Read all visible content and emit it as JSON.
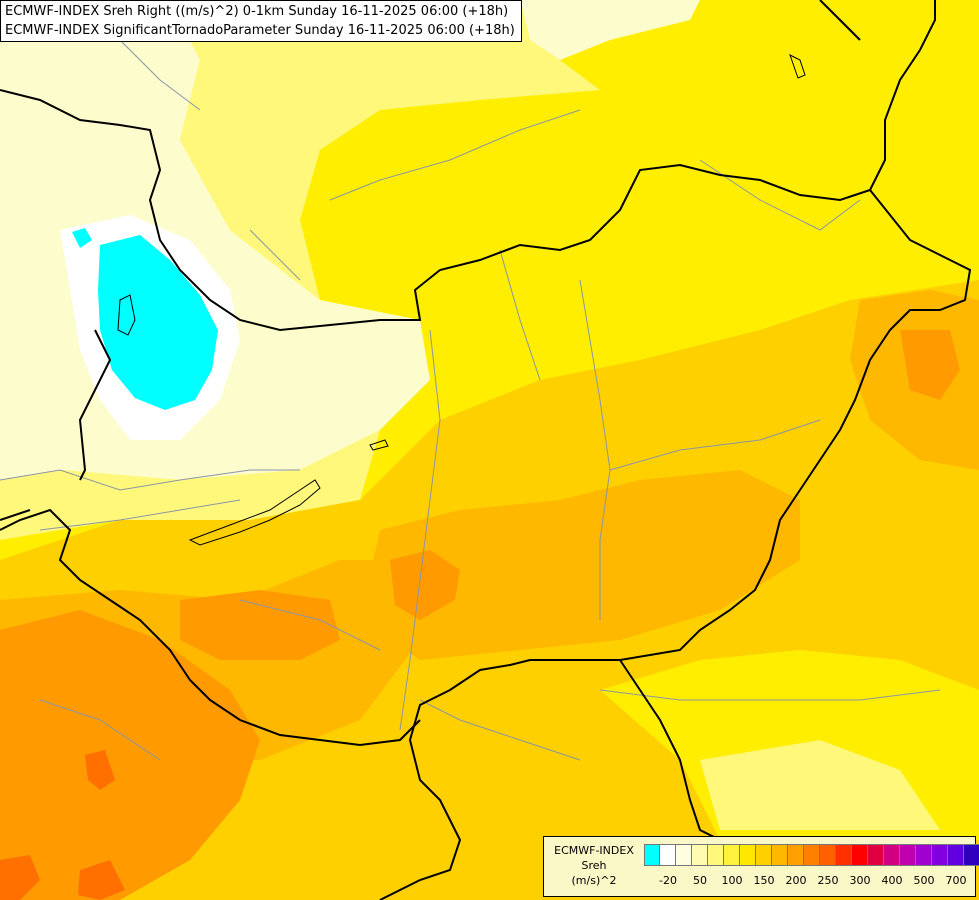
{
  "title": {
    "line1": "ECMWF-INDEX Sreh Right ((m/s)^2) 0-1km Sunday 16-11-2025 06:00 (+18h)",
    "line2": "ECMWF-INDEX SignificantTornadoParameter Sunday 16-11-2025 06:00 (+18h)"
  },
  "legend": {
    "label_line1": "ECMWF-INDEX",
    "label_line2": "Sreh",
    "label_line3": "(m/s)^2",
    "colors": [
      "#00ffff",
      "#ffffff",
      "#fffde0",
      "#fffbb0",
      "#fff87a",
      "#fff23c",
      "#ffe800",
      "#ffd000",
      "#ffb800",
      "#ffa000",
      "#ff8000",
      "#ff6000",
      "#ff3000",
      "#ff0000",
      "#e00040",
      "#d00080",
      "#c000b0",
      "#a000d0",
      "#8000e0",
      "#6000e0",
      "#3000c0",
      "#000080"
    ],
    "ticks": [
      "-20",
      "50",
      "100",
      "150",
      "200",
      "250",
      "300",
      "400",
      "500",
      "700"
    ]
  },
  "colors": {
    "pale": "#fdfccc",
    "light_yellow": "#fff87a",
    "yellow": "#ffee00",
    "gold": "#ffd000",
    "amber": "#ffb800",
    "orange": "#ff9a00",
    "deep_orange": "#ff7000",
    "cyan": "#00ffff",
    "white": "#ffffff"
  }
}
